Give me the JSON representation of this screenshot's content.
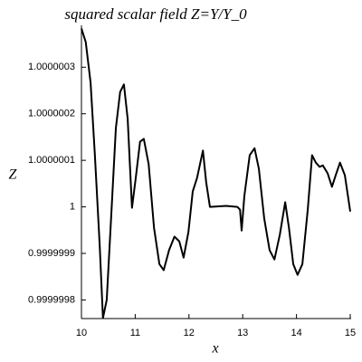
{
  "chart_data": {
    "type": "line",
    "title": "squared scalar field Z=Y/Y_0",
    "x_label": "x",
    "y_label": "Z",
    "color": "#000000",
    "x": [
      10.0,
      10.08,
      10.17,
      10.25,
      10.34,
      10.4,
      10.47,
      10.56,
      10.64,
      10.72,
      10.79,
      10.86,
      10.94,
      11.01,
      11.09,
      11.16,
      11.25,
      11.35,
      11.45,
      11.53,
      11.63,
      11.73,
      11.82,
      11.9,
      11.99,
      12.07,
      12.15,
      12.26,
      12.32,
      12.39,
      12.69,
      12.9,
      12.95,
      12.98,
      13.03,
      13.13,
      13.22,
      13.3,
      13.4,
      13.5,
      13.59,
      13.69,
      13.79,
      13.86,
      13.94,
      14.02,
      14.11,
      14.21,
      14.29,
      14.36,
      14.43,
      14.49,
      14.58,
      14.66,
      14.73,
      14.81,
      14.9,
      15.0
    ],
    "values": [
      1.000000383,
      1.000000354,
      1.000000267,
      1.000000111,
      0.999999916,
      0.999999761,
      0.9999998,
      0.999999994,
      1.000000169,
      1.000000247,
      1.000000263,
      1.000000189,
      0.999999998,
      1.000000062,
      1.00000014,
      1.000000146,
      1.000000092,
      0.999999955,
      0.999999877,
      0.999999864,
      0.999999907,
      0.999999936,
      0.999999926,
      0.999999891,
      0.999999946,
      1.000000033,
      1.000000062,
      1.000000121,
      1.000000053,
      1.0,
      1.000000002,
      1.0,
      0.999999994,
      0.999999949,
      1.000000023,
      1.000000111,
      1.000000126,
      1.000000082,
      0.999999975,
      0.999999907,
      0.999999887,
      0.99999994,
      1.00000001,
      0.999999955,
      0.999999877,
      0.999999854,
      0.999999877,
      0.999999994,
      1.000000111,
      1.000000095,
      1.000000086,
      1.000000089,
      1.000000072,
      1.000000043,
      1.000000068,
      1.000000095,
      1.000000068,
      0.99999999
    ],
    "xlim": [
      10,
      15
    ],
    "xticks": [
      10,
      11,
      12,
      13,
      14,
      15
    ],
    "ylim": [
      0.99999976,
      1.00000039
    ],
    "yticks": [
      0.9999998,
      0.9999999,
      1,
      1.0000001,
      1.0000002,
      1.0000003
    ]
  }
}
